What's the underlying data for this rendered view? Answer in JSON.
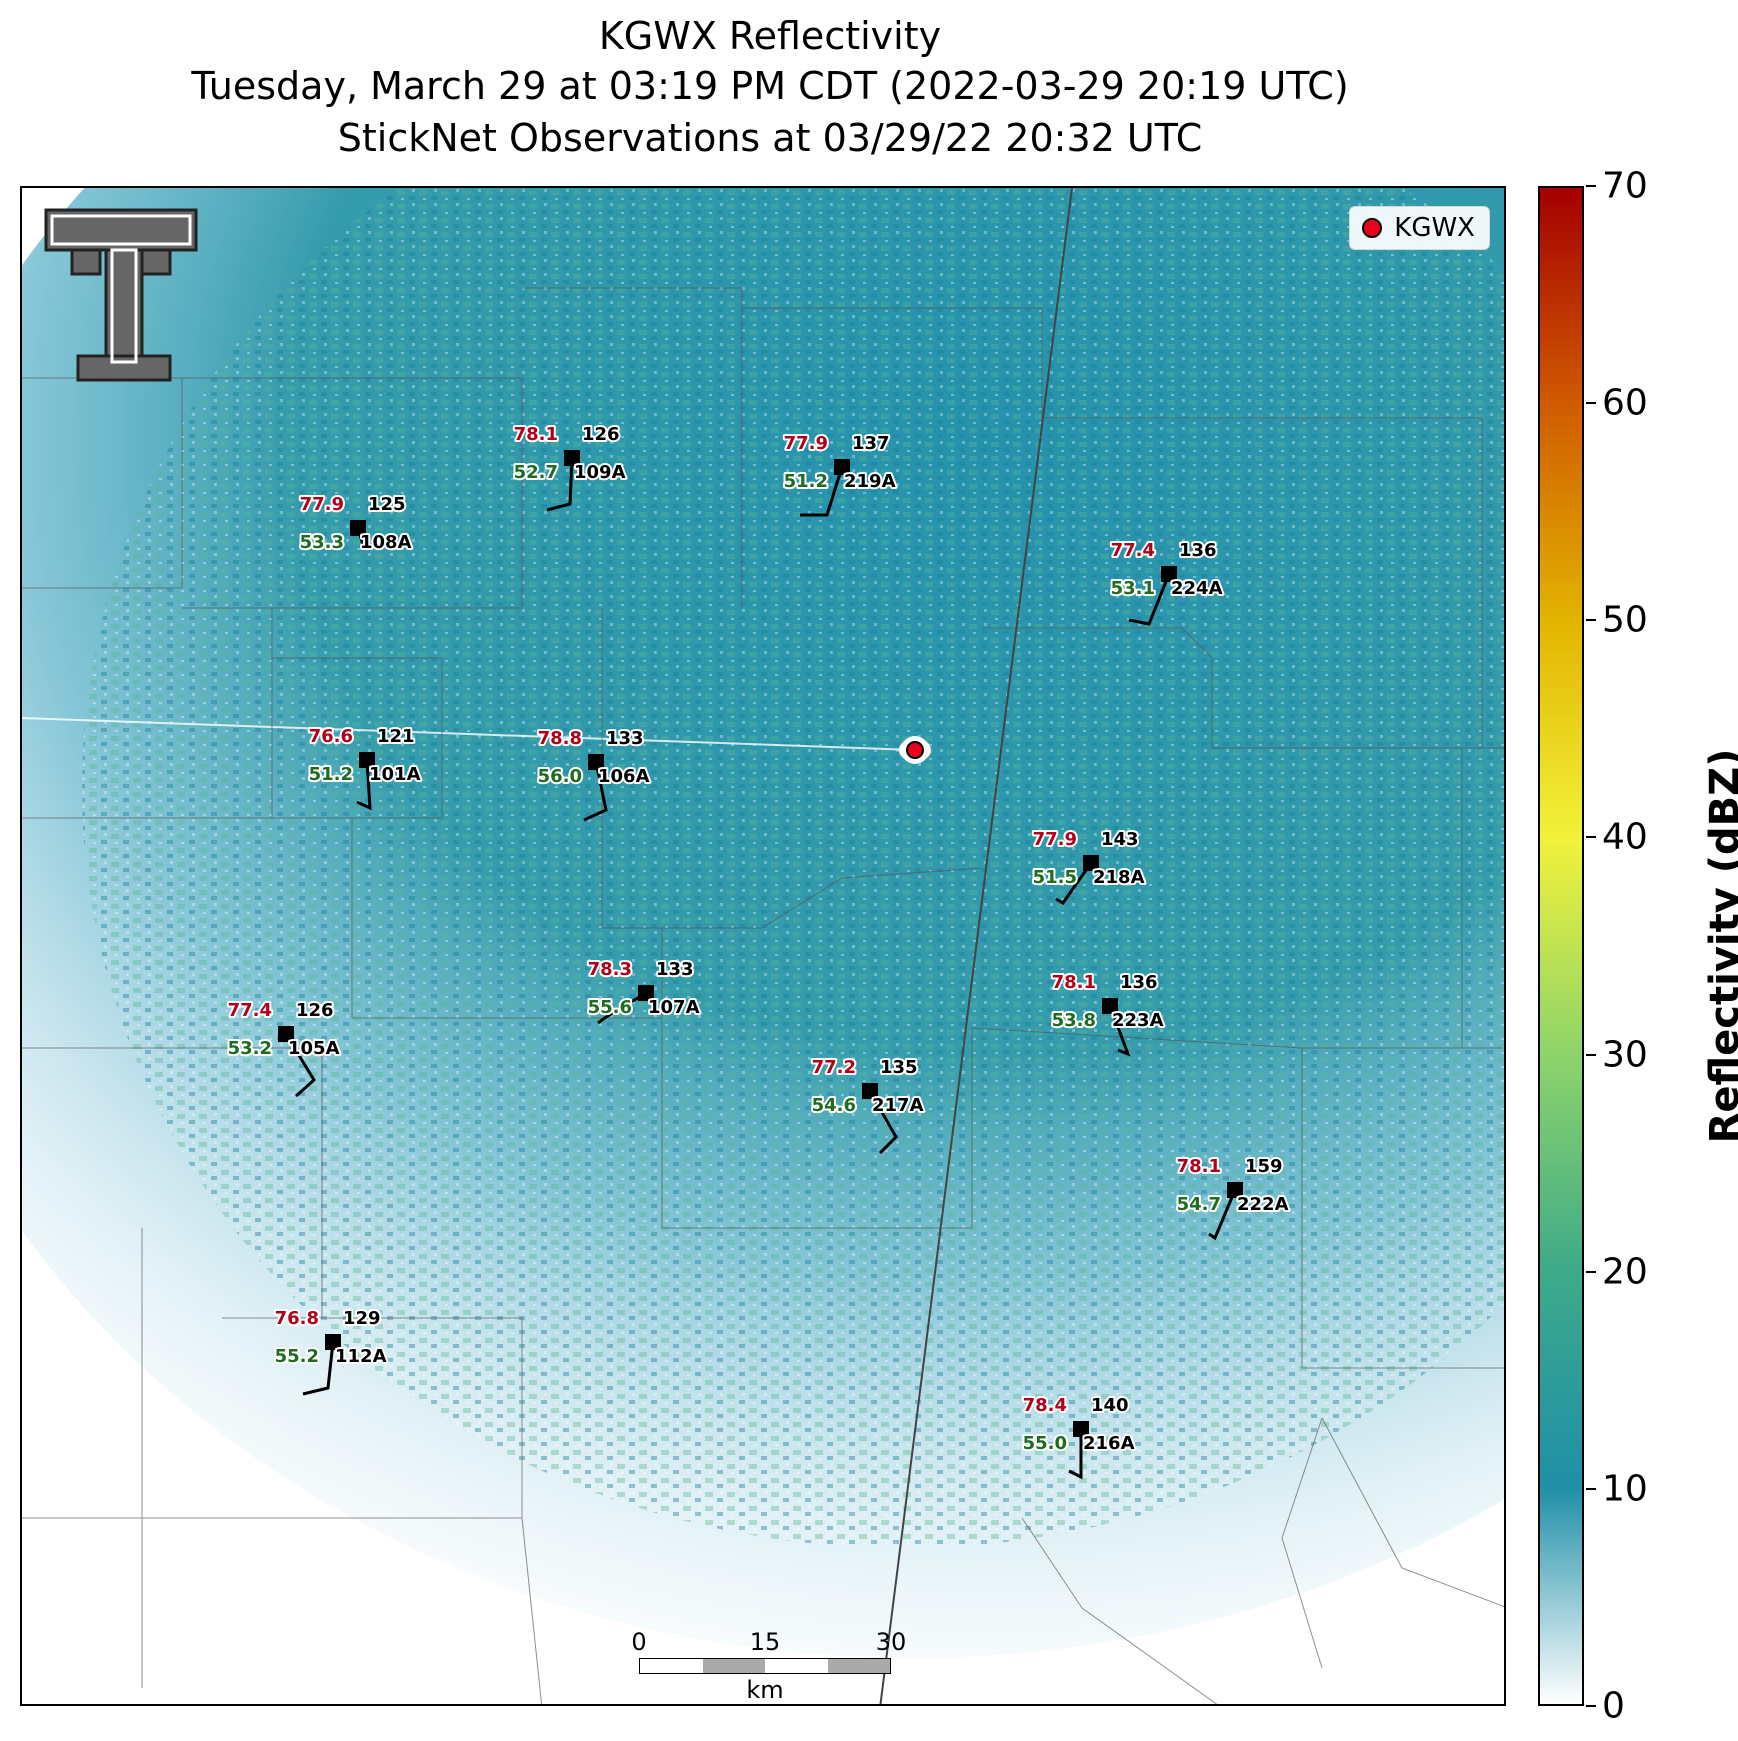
{
  "title": {
    "line1": "KGWX Reflectivity",
    "line2": "Tuesday, March 29 at 03:19 PM CDT (2022-03-29 20:19 UTC)",
    "line3": "StickNet Observations at 03/29/22 20:32 UTC"
  },
  "legend": {
    "label": "KGWX",
    "color": "#e8001c"
  },
  "scalebar": {
    "ticks": [
      "0",
      "15",
      "30"
    ],
    "unit": "km"
  },
  "colorbar": {
    "title": "Reflectivity (dBZ)",
    "ticks": [
      "0",
      "10",
      "20",
      "30",
      "40",
      "50",
      "60",
      "70"
    ],
    "colors": [
      "#ffffff",
      "#1f8fa8",
      "#3eaa8a",
      "#8ed46a",
      "#f2f23a",
      "#e2b400",
      "#d05b00",
      "#a40000"
    ]
  },
  "stations": [
    {
      "id": "108A",
      "temp": "77.9",
      "dew": "53.3",
      "pressure": "125"
    },
    {
      "id": "109A",
      "temp": "78.1",
      "dew": "52.7",
      "pressure": "126"
    },
    {
      "id": "219A",
      "temp": "77.9",
      "dew": "51.2",
      "pressure": "137"
    },
    {
      "id": "224A",
      "temp": "77.4",
      "dew": "53.1",
      "pressure": "136"
    },
    {
      "id": "101A",
      "temp": "76.6",
      "dew": "51.2",
      "pressure": "121"
    },
    {
      "id": "106A",
      "temp": "78.8",
      "dew": "56.0",
      "pressure": "133"
    },
    {
      "id": "218A",
      "temp": "77.9",
      "dew": "51.5",
      "pressure": "143"
    },
    {
      "id": "107A",
      "temp": "78.3",
      "dew": "55.6",
      "pressure": "133"
    },
    {
      "id": "223A",
      "temp": "78.1",
      "dew": "53.8",
      "pressure": "136"
    },
    {
      "id": "105A",
      "temp": "77.4",
      "dew": "53.2",
      "pressure": "126"
    },
    {
      "id": "217A",
      "temp": "77.2",
      "dew": "54.6",
      "pressure": "135"
    },
    {
      "id": "222A",
      "temp": "78.1",
      "dew": "54.7",
      "pressure": "159"
    },
    {
      "id": "112A",
      "temp": "76.8",
      "dew": "55.2",
      "pressure": "129"
    },
    {
      "id": "216A",
      "temp": "78.4",
      "dew": "55.0",
      "pressure": "140"
    }
  ]
}
